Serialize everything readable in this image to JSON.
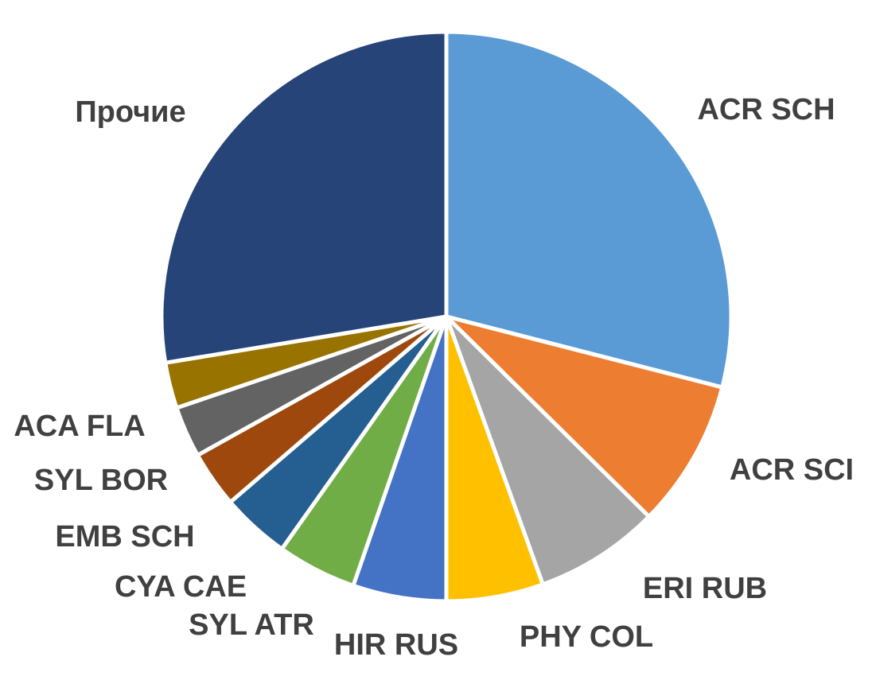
{
  "chart_data": {
    "type": "pie",
    "title": "",
    "slices": [
      {
        "label": "ACR SCH",
        "value": 29.0,
        "color": "#5b9bd5"
      },
      {
        "label": "ACR SCI",
        "value": 8.4,
        "color": "#ed7d31"
      },
      {
        "label": "ERI RUB",
        "value": 7.1,
        "color": "#a5a5a5"
      },
      {
        "label": "PHY COL",
        "value": 5.5,
        "color": "#ffc000"
      },
      {
        "label": "HIR RUS",
        "value": 5.3,
        "color": "#4472c4"
      },
      {
        "label": "SYL ATR",
        "value": 4.5,
        "color": "#70ad47"
      },
      {
        "label": "CYA CAE",
        "value": 3.9,
        "color": "#255e91"
      },
      {
        "label": "EMB SCH",
        "value": 3.2,
        "color": "#9e480e"
      },
      {
        "label": "SYL BOR",
        "value": 2.9,
        "color": "#636363"
      },
      {
        "label": "ACA FLA",
        "value": 2.6,
        "color": "#997300"
      },
      {
        "label": "Прочие",
        "value": 27.6,
        "color": "#264478"
      }
    ],
    "start_angle_deg": 0,
    "direction": "clockwise",
    "legend": "none",
    "data_labels": "category names outside slices"
  }
}
